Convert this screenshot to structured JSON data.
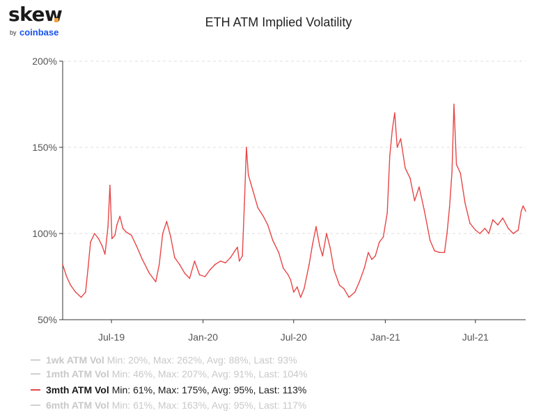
{
  "logo": {
    "main": "skew",
    "by": "by",
    "brand": "coinbase"
  },
  "colors": {
    "series": "#e84545",
    "grid": "#dddddd",
    "axis": "#333333",
    "inactive": "#c8c8c8"
  },
  "chart_data": {
    "type": "line",
    "title": "ETH ATM Implied Volatility",
    "y_ticks": [
      "200%",
      "150%",
      "100%",
      "50%"
    ],
    "ylim": [
      50,
      200
    ],
    "y_unit": "%",
    "x_ticks": [
      {
        "label": "Jul-19",
        "date": "2019-07-01"
      },
      {
        "label": "Jan-20",
        "date": "2020-01-01"
      },
      {
        "label": "Jul-20",
        "date": "2020-07-01"
      },
      {
        "label": "Jan-21",
        "date": "2021-01-01"
      },
      {
        "label": "Jul-21",
        "date": "2021-07-01"
      }
    ],
    "xlim": [
      "2019-03-25",
      "2021-10-10"
    ],
    "grid": "horizontal-dashed",
    "legend_position": "bottom-left",
    "series": [
      {
        "name": "3mth ATM Vol",
        "active": true,
        "points": [
          [
            "2019-03-25",
            82
          ],
          [
            "2019-04-02",
            75
          ],
          [
            "2019-04-10",
            70
          ],
          [
            "2019-04-20",
            66
          ],
          [
            "2019-05-01",
            63
          ],
          [
            "2019-05-10",
            66
          ],
          [
            "2019-05-15",
            80
          ],
          [
            "2019-05-20",
            95
          ],
          [
            "2019-05-28",
            100
          ],
          [
            "2019-06-05",
            97
          ],
          [
            "2019-06-12",
            93
          ],
          [
            "2019-06-18",
            88
          ],
          [
            "2019-06-24",
            104
          ],
          [
            "2019-06-28",
            128
          ],
          [
            "2019-07-02",
            97
          ],
          [
            "2019-07-08",
            99
          ],
          [
            "2019-07-12",
            105
          ],
          [
            "2019-07-18",
            110
          ],
          [
            "2019-07-24",
            103
          ],
          [
            "2019-07-30",
            101
          ],
          [
            "2019-08-10",
            99
          ],
          [
            "2019-08-20",
            93
          ],
          [
            "2019-09-01",
            85
          ],
          [
            "2019-09-15",
            77
          ],
          [
            "2019-09-28",
            72
          ],
          [
            "2019-10-05",
            82
          ],
          [
            "2019-10-12",
            100
          ],
          [
            "2019-10-20",
            107
          ],
          [
            "2019-10-28",
            98
          ],
          [
            "2019-11-05",
            86
          ],
          [
            "2019-11-15",
            82
          ],
          [
            "2019-11-25",
            77
          ],
          [
            "2019-12-05",
            74
          ],
          [
            "2019-12-15",
            84
          ],
          [
            "2019-12-25",
            76
          ],
          [
            "2020-01-05",
            75
          ],
          [
            "2020-01-15",
            79
          ],
          [
            "2020-01-25",
            82
          ],
          [
            "2020-02-05",
            84
          ],
          [
            "2020-02-15",
            83
          ],
          [
            "2020-02-25",
            86
          ],
          [
            "2020-03-05",
            90
          ],
          [
            "2020-03-10",
            92
          ],
          [
            "2020-03-14",
            84
          ],
          [
            "2020-03-20",
            87
          ],
          [
            "2020-03-24",
            117
          ],
          [
            "2020-03-28",
            150
          ],
          [
            "2020-04-01",
            134
          ],
          [
            "2020-04-10",
            125
          ],
          [
            "2020-04-20",
            115
          ],
          [
            "2020-05-01",
            110
          ],
          [
            "2020-05-10",
            105
          ],
          [
            "2020-05-20",
            96
          ],
          [
            "2020-06-01",
            89
          ],
          [
            "2020-06-10",
            80
          ],
          [
            "2020-06-20",
            76
          ],
          [
            "2020-06-25",
            73
          ],
          [
            "2020-07-01",
            66
          ],
          [
            "2020-07-08",
            69
          ],
          [
            "2020-07-15",
            63
          ],
          [
            "2020-07-22",
            68
          ],
          [
            "2020-08-01",
            82
          ],
          [
            "2020-08-08",
            94
          ],
          [
            "2020-08-15",
            104
          ],
          [
            "2020-08-22",
            93
          ],
          [
            "2020-08-28",
            87
          ],
          [
            "2020-09-05",
            100
          ],
          [
            "2020-09-12",
            92
          ],
          [
            "2020-09-20",
            79
          ],
          [
            "2020-10-01",
            70
          ],
          [
            "2020-10-10",
            68
          ],
          [
            "2020-10-20",
            63
          ],
          [
            "2020-11-01",
            66
          ],
          [
            "2020-11-10",
            72
          ],
          [
            "2020-11-20",
            80
          ],
          [
            "2020-11-28",
            89
          ],
          [
            "2020-12-05",
            85
          ],
          [
            "2020-12-12",
            87
          ],
          [
            "2020-12-20",
            95
          ],
          [
            "2020-12-28",
            98
          ],
          [
            "2021-01-05",
            112
          ],
          [
            "2021-01-10",
            145
          ],
          [
            "2021-01-15",
            160
          ],
          [
            "2021-01-20",
            170
          ],
          [
            "2021-01-25",
            150
          ],
          [
            "2021-02-01",
            155
          ],
          [
            "2021-02-10",
            138
          ],
          [
            "2021-02-20",
            132
          ],
          [
            "2021-03-01",
            119
          ],
          [
            "2021-03-10",
            127
          ],
          [
            "2021-03-20",
            114
          ],
          [
            "2021-04-01",
            96
          ],
          [
            "2021-04-10",
            90
          ],
          [
            "2021-04-20",
            89
          ],
          [
            "2021-04-30",
            89
          ],
          [
            "2021-05-05",
            100
          ],
          [
            "2021-05-10",
            115
          ],
          [
            "2021-05-15",
            136
          ],
          [
            "2021-05-19",
            175
          ],
          [
            "2021-05-24",
            140
          ],
          [
            "2021-06-01",
            135
          ],
          [
            "2021-06-10",
            118
          ],
          [
            "2021-06-20",
            106
          ],
          [
            "2021-07-01",
            102
          ],
          [
            "2021-07-10",
            100
          ],
          [
            "2021-07-20",
            103
          ],
          [
            "2021-07-28",
            100
          ],
          [
            "2021-08-05",
            108
          ],
          [
            "2021-08-15",
            105
          ],
          [
            "2021-08-25",
            109
          ],
          [
            "2021-09-05",
            103
          ],
          [
            "2021-09-15",
            100
          ],
          [
            "2021-09-25",
            102
          ],
          [
            "2021-10-01",
            113
          ],
          [
            "2021-10-05",
            116
          ],
          [
            "2021-10-10",
            113
          ]
        ]
      }
    ]
  },
  "legend": [
    {
      "name": "1wk ATM Vol",
      "stats": "Min: 20%, Max: 262%, Avg: 88%, Last: 93%",
      "active": false
    },
    {
      "name": "1mth ATM Vol",
      "stats": "Min: 46%, Max: 207%, Avg: 91%, Last: 104%",
      "active": false
    },
    {
      "name": "3mth ATM Vol",
      "stats": "Min: 61%, Max: 175%, Avg: 95%, Last: 113%",
      "active": true
    },
    {
      "name": "6mth ATM Vol",
      "stats": "Min: 61%, Max: 163%, Avg: 95%, Last: 117%",
      "active": false
    }
  ]
}
